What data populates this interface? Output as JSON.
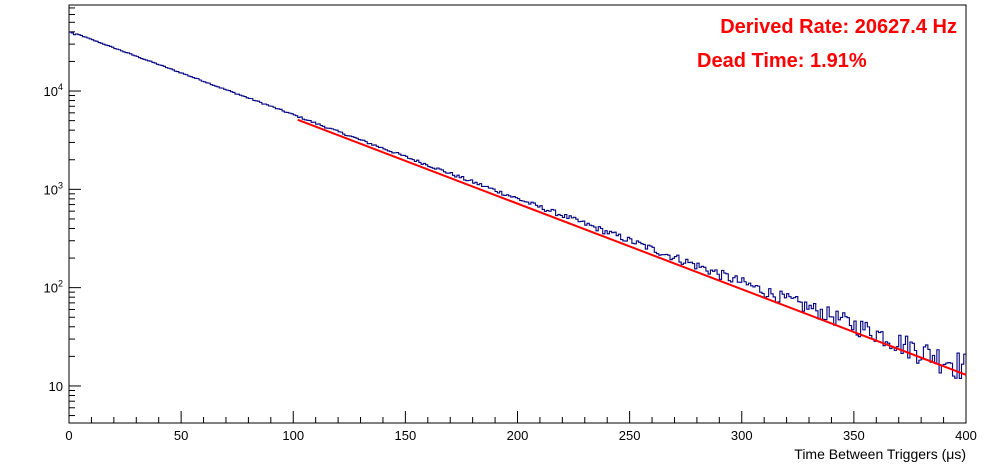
{
  "chart_data": {
    "type": "line",
    "title": "",
    "xlabel": "Time Between Triggers (μs)",
    "ylabel": "",
    "xlim": [
      0,
      400
    ],
    "ylim": [
      4.2,
      75000
    ],
    "yscale": "log",
    "grid": false,
    "x_ticks": [
      0,
      50,
      100,
      150,
      200,
      250,
      300,
      350,
      400
    ],
    "y_ticks": [
      {
        "value": 10,
        "base": "10",
        "exp": ""
      },
      {
        "value": 100,
        "base": "10",
        "exp": "2"
      },
      {
        "value": 1000,
        "base": "10",
        "exp": "3"
      },
      {
        "value": 10000,
        "base": "10",
        "exp": "4"
      }
    ],
    "annotations": [
      {
        "text": "Derived Rate: 20627.4 Hz",
        "color": "#ff0000"
      },
      {
        "text": "Dead Time: 1.91%",
        "color": "#ff0000"
      }
    ],
    "series": [
      {
        "kind": "histogram",
        "color": "#000080",
        "bin_width_us": 1,
        "x": [
          0,
          5,
          10,
          20,
          30,
          40,
          50,
          60,
          70,
          80,
          90,
          100,
          110,
          120,
          130,
          140,
          150,
          160,
          170,
          180,
          190,
          200,
          210,
          220,
          230,
          240,
          250,
          260,
          270,
          280,
          290,
          300,
          310,
          320,
          330,
          340,
          350,
          360,
          370,
          380,
          390,
          400
        ],
        "y": [
          40000,
          37000,
          33500,
          27500,
          22600,
          18600,
          15300,
          12600,
          10300,
          8500,
          7000,
          5750,
          4700,
          3870,
          3180,
          2620,
          2150,
          1770,
          1450,
          1190,
          980,
          805,
          660,
          545,
          448,
          368,
          302,
          248,
          204,
          168,
          138,
          113,
          93,
          76,
          63,
          52,
          42,
          35,
          28,
          23,
          19,
          16
        ]
      },
      {
        "kind": "fit",
        "color": "#ff0000",
        "x_start": 102,
        "x_end": 400,
        "y_at_start": 5100,
        "y_at_end": 13
      }
    ]
  }
}
